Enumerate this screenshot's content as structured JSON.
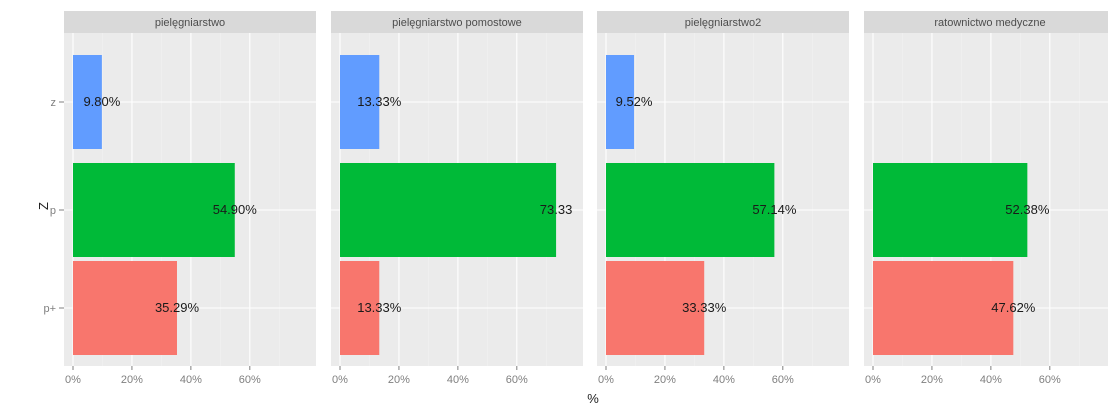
{
  "chart_data": {
    "type": "bar",
    "subtitle": "",
    "xlabel": "%",
    "ylabel": "Z",
    "xlim": [
      0,
      0.75
    ],
    "x_ticks": [
      0,
      0.2,
      0.4,
      0.6
    ],
    "x_tick_labels": [
      "0%",
      "20%",
      "40%",
      "60%"
    ],
    "categories": [
      "z",
      "p",
      "p+"
    ],
    "category_colors": {
      "z": "#619cff",
      "p": "#00ba38",
      "p+": "#f8766d"
    },
    "grid": true,
    "legend": "none",
    "panels": [
      {
        "name": "pielęgniarstwo",
        "bars": [
          {
            "category": "z",
            "value": 0.098,
            "label": "9.80%"
          },
          {
            "category": "p",
            "value": 0.549,
            "label": "54.90%"
          },
          {
            "category": "p+",
            "value": 0.3529,
            "label": "35.29%"
          }
        ]
      },
      {
        "name": "pielęgniarstwo pomostowe",
        "bars": [
          {
            "category": "z",
            "value": 0.1333,
            "label": "13.33%"
          },
          {
            "category": "p",
            "value": 0.7333,
            "label": "73.33"
          },
          {
            "category": "p+",
            "value": 0.1333,
            "label": "13.33%"
          }
        ]
      },
      {
        "name": "pielęgniarstwo2",
        "bars": [
          {
            "category": "z",
            "value": 0.0952,
            "label": "9.52%"
          },
          {
            "category": "p",
            "value": 0.5714,
            "label": "57.14%"
          },
          {
            "category": "p+",
            "value": 0.3333,
            "label": "33.33%"
          }
        ]
      },
      {
        "name": "ratownictwo medyczne",
        "bars": [
          {
            "category": "p",
            "value": 0.5238,
            "label": "52.38%"
          },
          {
            "category": "p+",
            "value": 0.4762,
            "label": "47.62%"
          }
        ]
      }
    ]
  },
  "colors": {
    "panel_bg": "#ebebeb",
    "strip_bg": "#d9d9d9",
    "grid_major": "#ffffff",
    "grid_minor": "#f2f2f2"
  }
}
